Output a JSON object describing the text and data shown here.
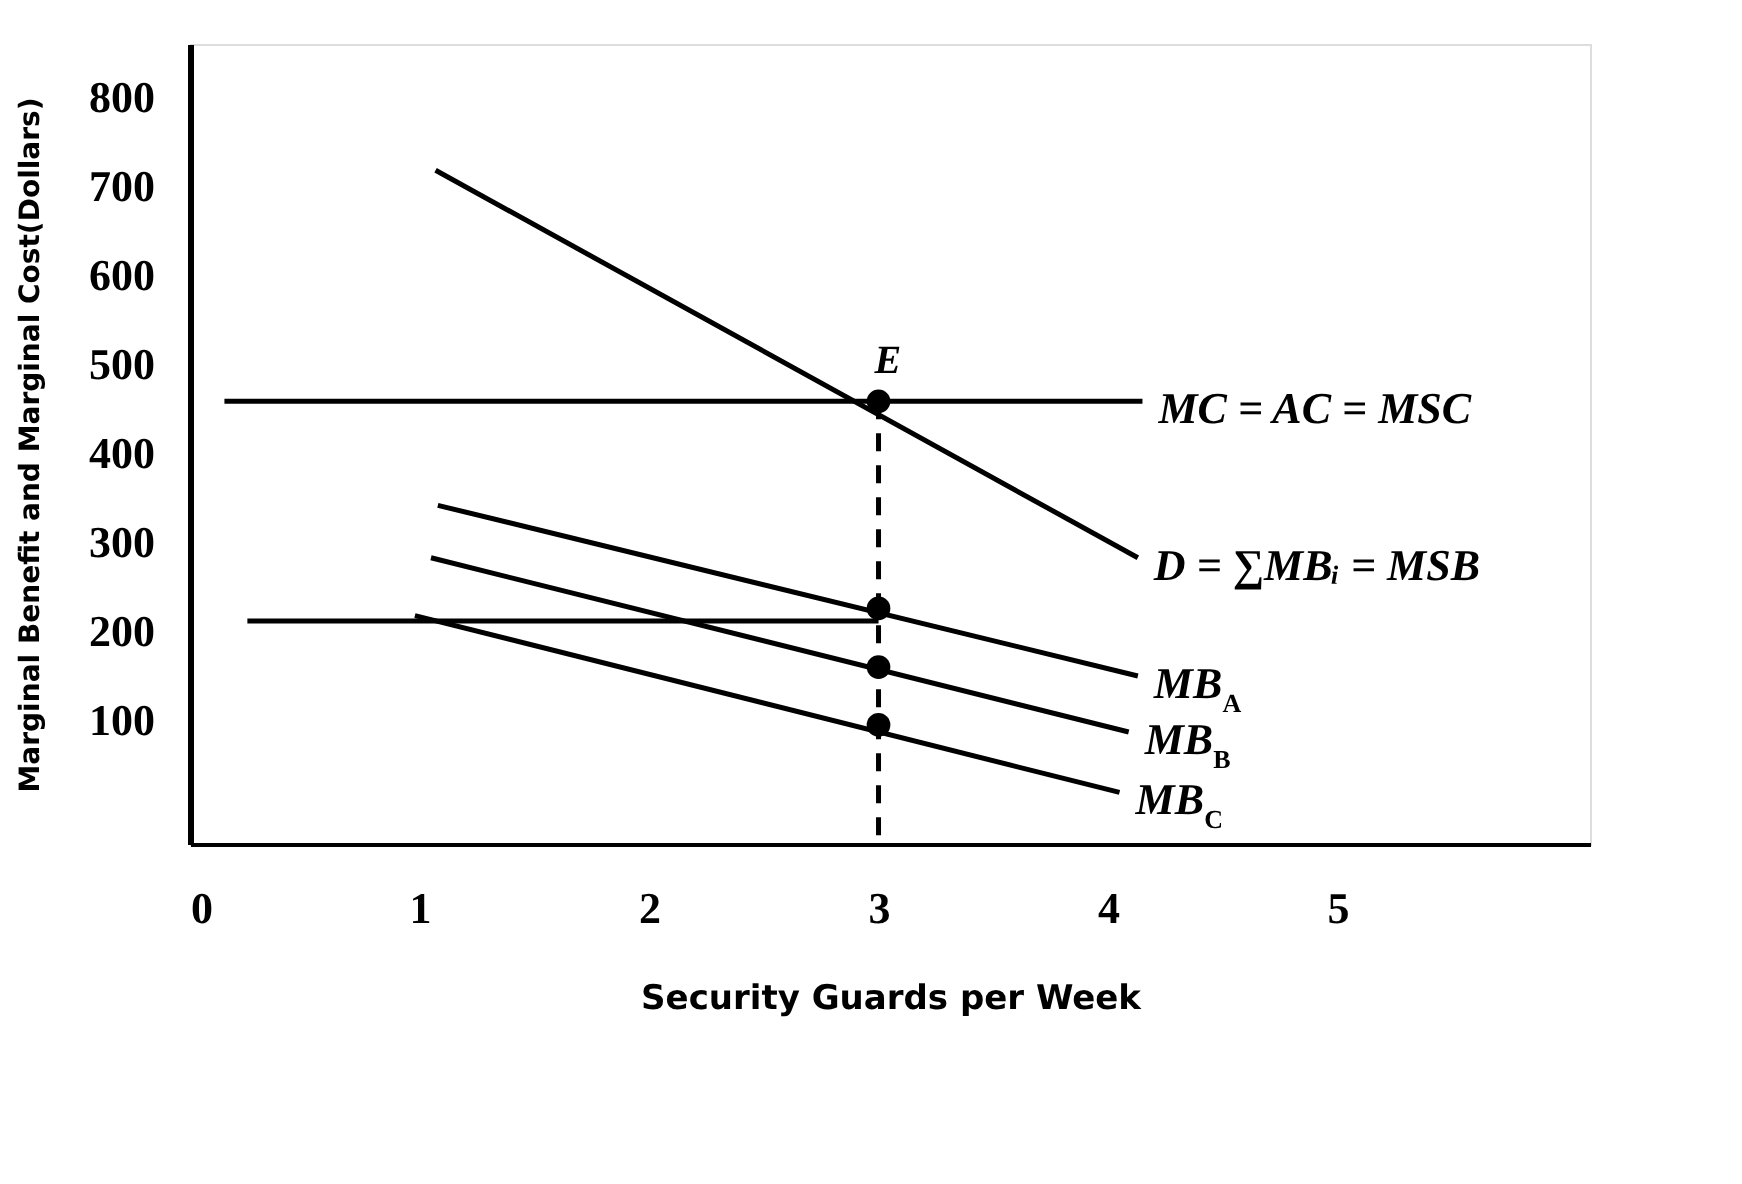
{
  "chart_data": {
    "type": "line",
    "xlabel": "Security Guards per Week",
    "ylabel": "Marginal Benefit and Marginal Cost(Dollars)",
    "xlim": [
      0,
      6.1
    ],
    "ylim": [
      -40,
      860
    ],
    "xticks": [
      0,
      1,
      2,
      3,
      4,
      5
    ],
    "yticks": [
      100,
      200,
      300,
      400,
      500,
      600,
      700,
      800
    ],
    "grid": false,
    "line_style": "solid",
    "series": [
      {
        "name": "MC = AC = MSC",
        "color": "#000000",
        "x": [
          0.15,
          4.15
        ],
        "values": [
          458,
          458
        ]
      },
      {
        "name": "D = ∑MBᵢ = MSB",
        "color": "#000000",
        "x": [
          1.07,
          4.13
        ],
        "values": [
          718,
          282
        ]
      },
      {
        "name": "MB$_{A}$",
        "color": "#000000",
        "x": [
          1.08,
          4.13
        ],
        "values": [
          341,
          149
        ]
      },
      {
        "name": "MB$_{B}$",
        "color": "#000000",
        "x": [
          1.05,
          4.09
        ],
        "values": [
          282,
          86
        ]
      },
      {
        "name": "MB$_{C}$",
        "color": "#000000",
        "x": [
          0.98,
          4.05
        ],
        "values": [
          217,
          18
        ]
      },
      {
        "color": "#000000",
        "x": [
          0.25,
          3
        ],
        "values": [
          211,
          211
        ]
      },
      {
        "color": "#000000",
        "x": [
          3,
          3
        ],
        "values": [
          458,
          -40
        ],
        "line_style": "dashed"
      },
      {
        "type": "scatter",
        "marker": "circle",
        "color": "#000000",
        "x": [
          3,
          3,
          3,
          3
        ],
        "values": [
          458,
          225,
          159,
          94
        ]
      }
    ],
    "annotations": [
      {
        "text": "E",
        "x": 3,
        "y": 458
      }
    ]
  }
}
